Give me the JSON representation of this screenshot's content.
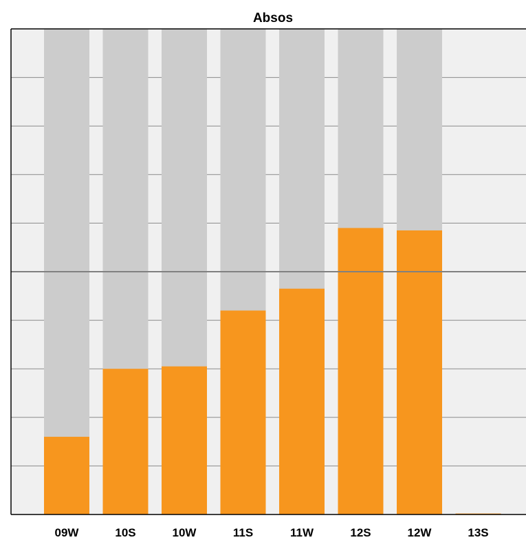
{
  "chart_data": {
    "type": "bar",
    "title": "Absos",
    "xlabel": "",
    "ylabel": "",
    "categories": [
      "09W",
      "10S",
      "10W",
      "11S",
      "11W",
      "12S",
      "12W",
      "13S"
    ],
    "values": [
      16,
      30,
      30.5,
      42,
      46.5,
      59,
      58.5,
      0.2
    ],
    "background_bar_max": [
      100,
      100,
      100,
      100,
      100,
      100,
      100,
      0
    ],
    "ylim": [
      0,
      100
    ],
    "grid": "horizontal",
    "reference_line": 50,
    "colors": {
      "bar": "#f7961e",
      "background_bar": "#cccccc",
      "plot_bg": "#f0f0f0",
      "grid": "#8a8a8a",
      "reference_line": "#808080"
    }
  }
}
